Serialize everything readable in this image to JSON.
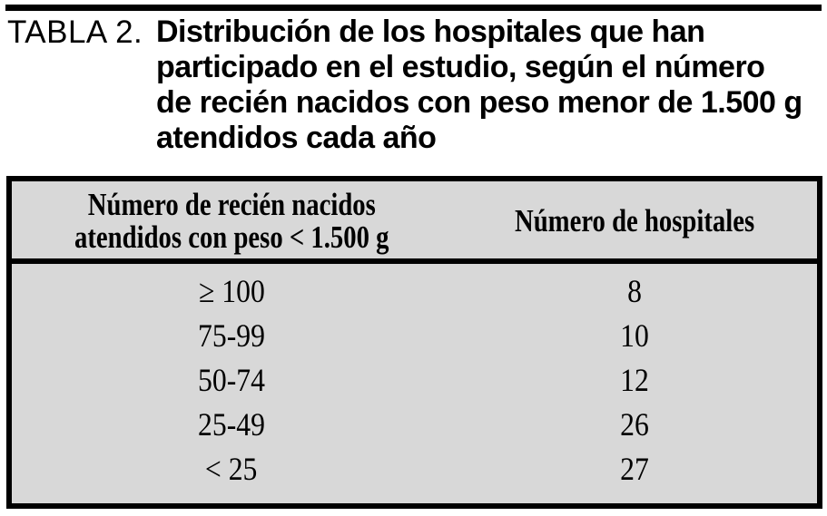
{
  "caption": {
    "label": "TABLA 2.",
    "title_lines": [
      "Distribución de los hospitales que han",
      "participado en el estudio, según el número",
      "de recién nacidos con peso menor de 1.500 g",
      "atendidos cada año"
    ]
  },
  "table": {
    "col1_header_lines": [
      "Número de recién nacidos",
      "atendidos con peso < 1.500 g"
    ],
    "col2_header": "Número de hospitales",
    "rows": [
      {
        "range": "≥ 100",
        "count": "8"
      },
      {
        "range": "75-99",
        "count": "10"
      },
      {
        "range": "50-74",
        "count": "12"
      },
      {
        "range": "25-49",
        "count": "26"
      },
      {
        "range": "< 25",
        "count": "27"
      }
    ]
  },
  "chart_data": {
    "type": "table",
    "title": "Distribución de los hospitales que han participado en el estudio, según el número de recién nacidos con peso menor de 1.500 g atendidos cada año",
    "columns": [
      "Número de recién nacidos atendidos con peso < 1.500 g",
      "Número de hospitales"
    ],
    "categories": [
      "≥ 100",
      "75-99",
      "50-74",
      "25-49",
      "< 25"
    ],
    "values": [
      8,
      10,
      12,
      26,
      27
    ]
  },
  "colors": {
    "table_background": "#d8d8d8",
    "ink": "#000000",
    "page_background": "#ffffff"
  }
}
